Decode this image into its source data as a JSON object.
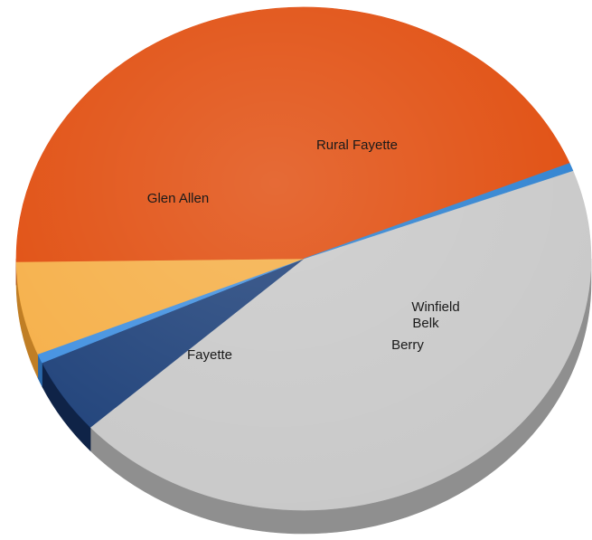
{
  "chart_data": {
    "type": "pie",
    "style": "3d-tilted",
    "title": "",
    "legend": "none",
    "slices": [
      {
        "label": "Rural Fayette",
        "value": 44.0,
        "color": "#c8c8c8",
        "side_color": "#8f8f8f"
      },
      {
        "label": "Winfield",
        "value": 4.9,
        "color": "#1c3f78",
        "side_color": "#0f2347"
      },
      {
        "label": "Belk",
        "value": 0.6,
        "color": "#3f8fe0",
        "side_color": "#2a68aa"
      },
      {
        "label": "Berry",
        "value": 6.0,
        "color": "#f5ae45",
        "side_color": "#c07e25"
      },
      {
        "label": "Fayette",
        "value": 44.0,
        "color": "#e04a0a",
        "side_color": "#a63205"
      },
      {
        "label": "Glen Allen",
        "value": 0.5,
        "color": "#2b80d0",
        "side_color": "#1b5a98"
      }
    ]
  }
}
